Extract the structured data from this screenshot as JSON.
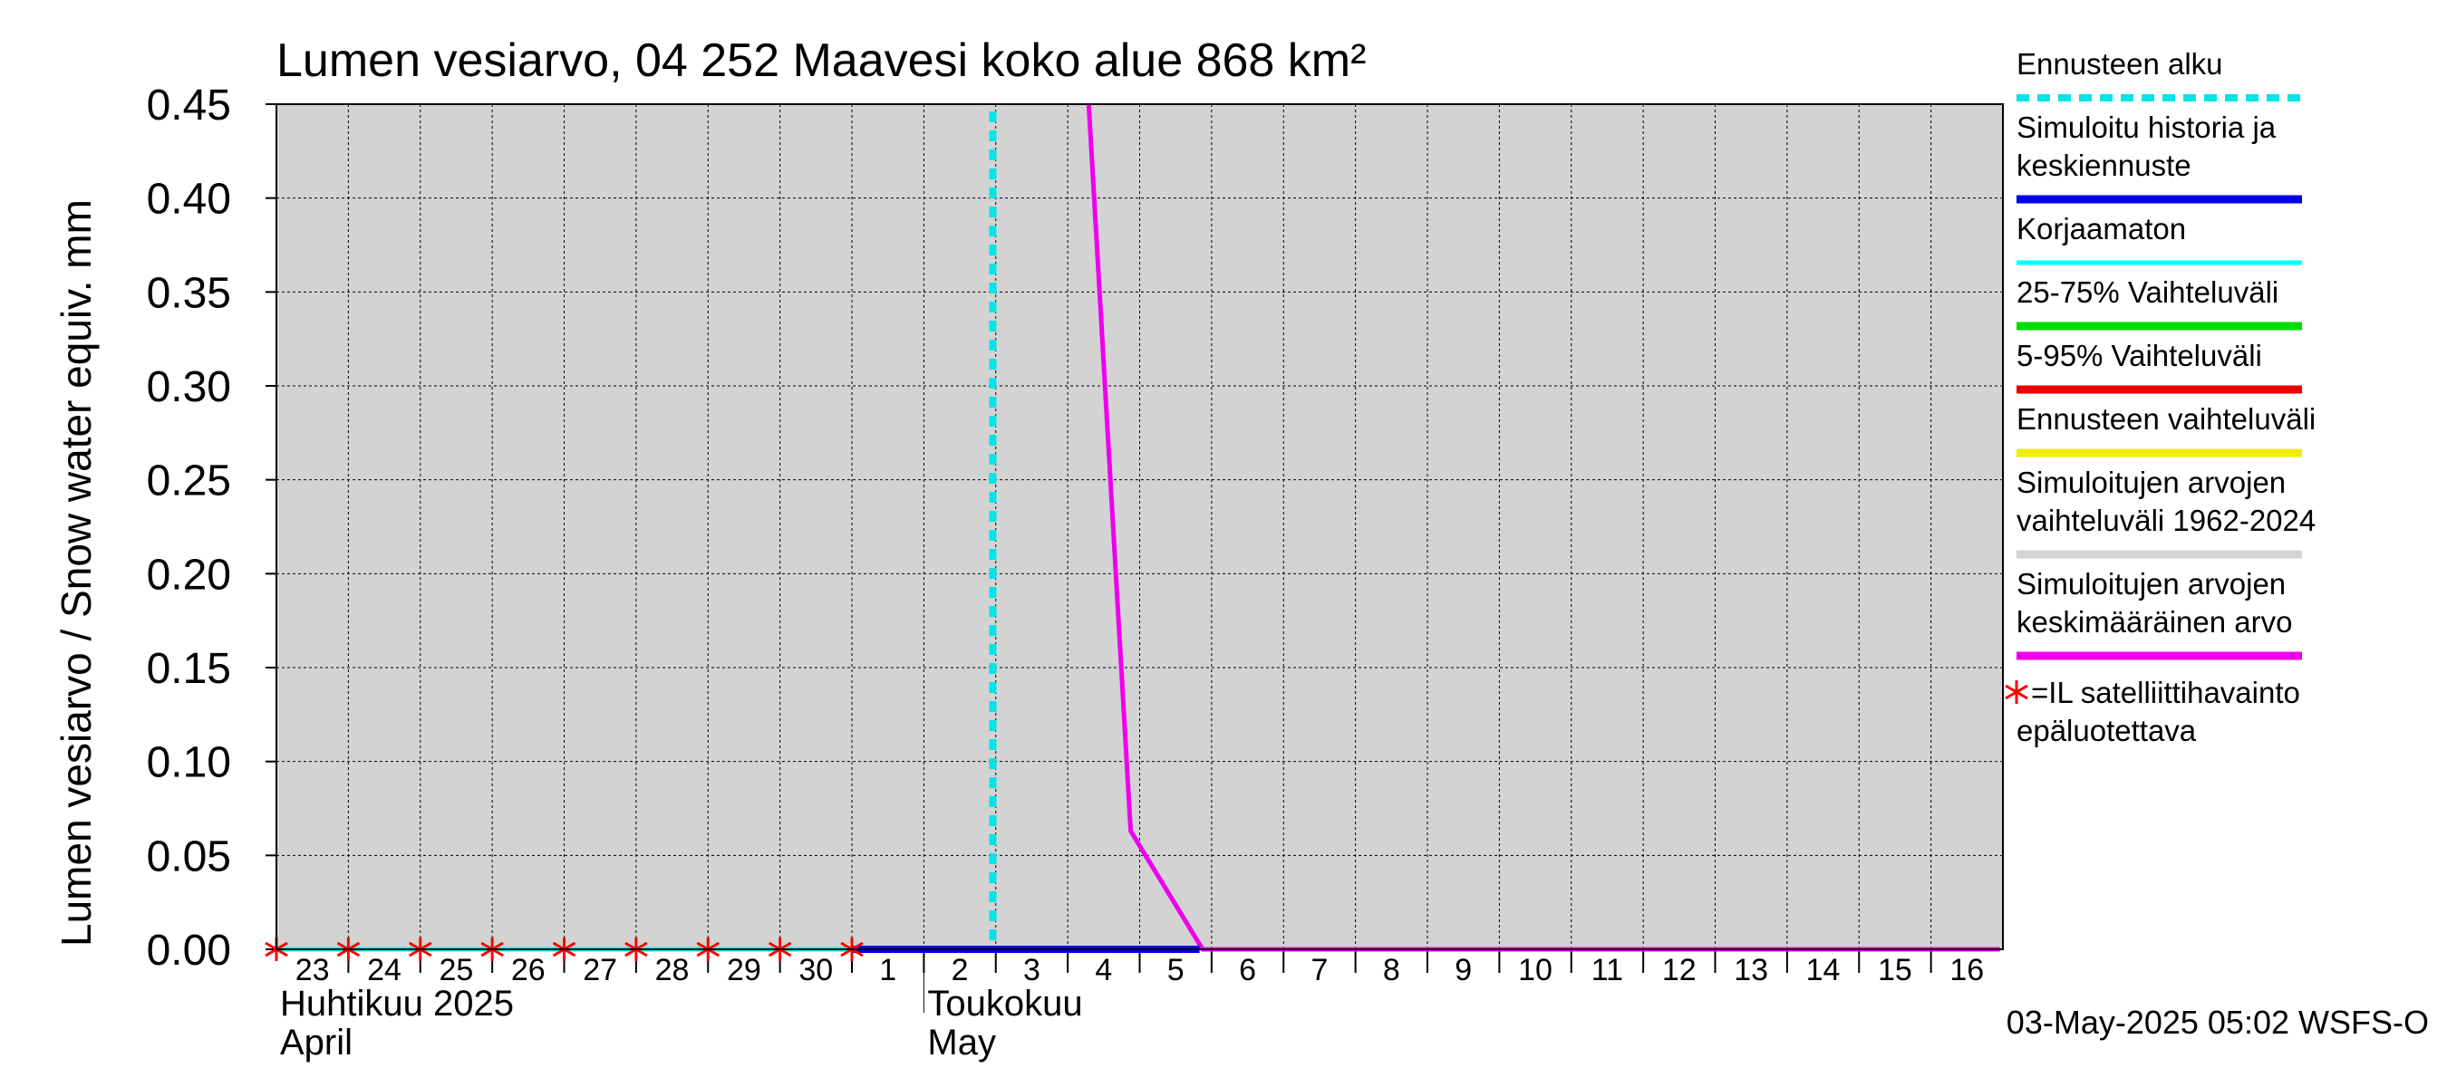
{
  "colors": {
    "plot_background": "#d3d3d3",
    "grid": "#000000",
    "forecast_start": "#00e5e5",
    "simulated_history": "#0000ee",
    "uncorrected": "#00ffff",
    "range_25_75": "#00dd00",
    "range_5_95": "#ee0000",
    "forecast_range": "#eeee00",
    "sim_range": "#d3d3d3",
    "sim_mean": "#ee00ee",
    "satellite_marker": "#ff0000"
  },
  "chart_data": {
    "type": "line",
    "title": "Lumen vesiarvo, 04 252 Maavesi koko alue 868 km²",
    "ylabel": "Lumen vesiarvo / Snow water equiv.    mm",
    "ylim": [
      0,
      0.45
    ],
    "yticks": [
      "0.00",
      "0.05",
      "0.10",
      "0.15",
      "0.20",
      "0.25",
      "0.30",
      "0.35",
      "0.40",
      "0.45"
    ],
    "x_range": [
      "2025-04-23",
      "2025-05-16"
    ],
    "x_tick_labels": [
      "23",
      "24",
      "25",
      "26",
      "27",
      "28",
      "29",
      "30",
      "1",
      "2",
      "3",
      "4",
      "5",
      "6",
      "7",
      "8",
      "9",
      "10",
      "11",
      "12",
      "13",
      "14",
      "15",
      "16"
    ],
    "month_labels": [
      {
        "line1": "Huhtikuu  2025",
        "line2": "April",
        "start": "2025-04-23"
      },
      {
        "line1": "Toukokuu",
        "line2": "May",
        "start": "2025-05-02"
      }
    ],
    "forecast_start": "2025-05-02T23:00",
    "series": [
      {
        "name": "Simuloitujen arvojen keskimääräinen arvo",
        "color": "#ee00ee",
        "points": [
          [
            "2025-05-04T07:00",
            0.45
          ],
          [
            "2025-05-04T21:00",
            0.063
          ],
          [
            "2025-05-05T21:00",
            0.0
          ],
          [
            "2025-05-16T23:00",
            0.0
          ]
        ]
      },
      {
        "name": "Korjaamaton",
        "color": "#00ffff",
        "points": [
          [
            "2025-04-23T00:00",
            0.0
          ],
          [
            "2025-05-01T00:00",
            0.0
          ]
        ]
      },
      {
        "name": "Simuloitu historia ja keskiennuste",
        "color": "#0000ee",
        "points": [
          [
            "2025-05-01T00:00",
            0.0
          ],
          [
            "2025-05-05T20:00",
            0.0
          ]
        ]
      }
    ],
    "satellite_observations": [
      "2025-04-23",
      "2025-04-24",
      "2025-04-25",
      "2025-04-26",
      "2025-04-27",
      "2025-04-28",
      "2025-04-29",
      "2025-04-30",
      "2025-05-01"
    ],
    "legend": [
      {
        "label": "Ennusteen alku",
        "color": "#00e5e5",
        "style": "dashed"
      },
      {
        "label": "Simuloitu historia ja\nkeskiennuste",
        "color": "#0000ee",
        "style": "solid"
      },
      {
        "label": "Korjaamaton",
        "color": "#00ffff",
        "style": "solid"
      },
      {
        "label": "25-75% Vaihteluväli",
        "color": "#00dd00",
        "style": "solid"
      },
      {
        "label": "5-95% Vaihteluväli",
        "color": "#ee0000",
        "style": "solid"
      },
      {
        "label": "Ennusteen vaihteluväli",
        "color": "#eeee00",
        "style": "solid"
      },
      {
        "label": "Simuloitujen arvojen\nvaihteluväli 1962-2024",
        "color": "#d3d3d3",
        "style": "solid"
      },
      {
        "label": "Simuloitujen arvojen\nkeskimääräinen arvo",
        "color": "#ee00ee",
        "style": "solid"
      },
      {
        "label": "=IL satelliittihavainto\nepäluotettava",
        "color": "#ff0000",
        "style": "marker"
      }
    ],
    "footer": "03-May-2025 05:02 WSFS-O",
    "grid": true,
    "legend_position": "right"
  }
}
